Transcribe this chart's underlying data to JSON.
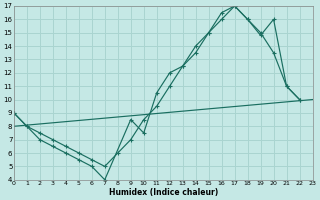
{
  "xlabel": "Humidex (Indice chaleur)",
  "bg_color": "#c5e8e5",
  "grid_color": "#aad4d0",
  "line_color": "#1a6e60",
  "xlim": [
    0,
    23
  ],
  "ylim": [
    4,
    17
  ],
  "xticks": [
    0,
    1,
    2,
    3,
    4,
    5,
    6,
    7,
    8,
    9,
    10,
    11,
    12,
    13,
    14,
    15,
    16,
    17,
    18,
    19,
    20,
    21,
    22,
    23
  ],
  "yticks": [
    4,
    5,
    6,
    7,
    8,
    9,
    10,
    11,
    12,
    13,
    14,
    15,
    16,
    17
  ],
  "line1_x": [
    0,
    1,
    2,
    3,
    4,
    5,
    6,
    7,
    9,
    10,
    11,
    12,
    13,
    14,
    15,
    16,
    17,
    18,
    19,
    20,
    21,
    22
  ],
  "line1_y": [
    9,
    8,
    7,
    6.5,
    6,
    5.5,
    5,
    4,
    8.5,
    7.5,
    10.5,
    12,
    12.5,
    13.5,
    15,
    16.5,
    17,
    16,
    15,
    13.5,
    11,
    10
  ],
  "line2_x": [
    0,
    1,
    2,
    3,
    4,
    5,
    6,
    7,
    8,
    9,
    10,
    11,
    12,
    13,
    14,
    15,
    16,
    17,
    18,
    19,
    20,
    21,
    22
  ],
  "line2_y": [
    9,
    8,
    7.5,
    7,
    6.5,
    6,
    5.5,
    5,
    6,
    7,
    8.5,
    9.5,
    11,
    12.5,
    14,
    15,
    16,
    17,
    16,
    14.8,
    16,
    11,
    10
  ],
  "line3_x": [
    0,
    23
  ],
  "line3_y": [
    8,
    10
  ]
}
